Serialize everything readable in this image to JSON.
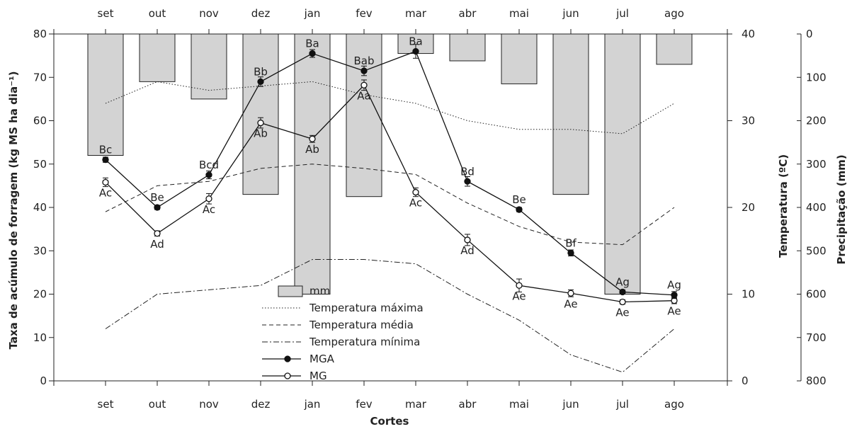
{
  "chart_data": {
    "type": "bar+line",
    "categories": [
      "set",
      "out",
      "nov",
      "dez",
      "jan",
      "fev",
      "mar",
      "abr",
      "mai",
      "jun",
      "jul",
      "ago"
    ],
    "xlabel": "Cortes",
    "ylabel_left": "Taxa de acúmulo de forragem (kg MS ha dia⁻¹)",
    "ylabel_right1": "Temperatura (ºC)",
    "ylabel_right2": "Precipitação (mm)",
    "ylim_left": [
      0,
      80
    ],
    "ylim_temp": [
      0,
      40
    ],
    "ylim_precip_inverted": [
      0,
      800
    ],
    "left_ticks": [
      0,
      10,
      20,
      30,
      40,
      50,
      60,
      70,
      80
    ],
    "temp_ticks": [
      0,
      10,
      20,
      30,
      40
    ],
    "precip_ticks": [
      0,
      100,
      200,
      300,
      400,
      500,
      600,
      700,
      800
    ],
    "precipitation": {
      "name": "mm",
      "values": [
        280,
        110,
        150,
        370,
        600,
        375,
        45,
        62,
        115,
        370,
        600,
        70
      ]
    },
    "temp_max": {
      "name": "Temperatura máxima",
      "values": [
        32,
        34.5,
        33.5,
        34,
        34.5,
        33,
        32,
        30,
        29,
        29,
        28.5,
        32
      ]
    },
    "temp_med": {
      "name": "Temperatura média",
      "values": [
        19.5,
        22.5,
        23,
        24.5,
        25,
        24.5,
        23.8,
        20.5,
        17.8,
        16,
        15.7,
        20
      ]
    },
    "temp_min": {
      "name": "Temperatura mínima",
      "values": [
        6,
        10,
        10.5,
        11,
        14,
        14,
        13.5,
        10,
        7,
        3,
        1,
        6
      ]
    },
    "series": [
      {
        "name": "MGA",
        "values": [
          51,
          40,
          47.5,
          69,
          75.5,
          71.5,
          76,
          46,
          39.5,
          29.5,
          20.5,
          19.8
        ],
        "errors": [
          0.6,
          0.5,
          0.9,
          1.1,
          0.9,
          1.1,
          1.6,
          1.1,
          0.5,
          0.7,
          0.5,
          0.8
        ],
        "labels": [
          "Bc",
          "Be",
          "Bcd",
          "Bb",
          "Ba",
          "Bab",
          "Ba",
          "Bd",
          "Be",
          "Bf",
          "Ag",
          "Ag"
        ]
      },
      {
        "name": "MG",
        "values": [
          45.8,
          34,
          42,
          59.5,
          55.8,
          68.2,
          43.5,
          32.5,
          22,
          20.2,
          18.2,
          18.5
        ],
        "errors": [
          1.0,
          0.6,
          1.2,
          1.2,
          0.8,
          1.2,
          1.0,
          1.3,
          1.5,
          0.8,
          0.5,
          0.7
        ],
        "labels": [
          "Ac",
          "Ad",
          "Ac",
          "Ab",
          "Ab",
          "Aa",
          "Ac",
          "Ad",
          "Ae",
          "Ae",
          "Ae",
          "Ae"
        ]
      }
    ],
    "legend": [
      "mm",
      "Temperatura máxima",
      "Temperatura média",
      "Temperatura mínima",
      "MGA",
      "MG"
    ],
    "legend_placement": "bottom-center",
    "grid": false
  }
}
